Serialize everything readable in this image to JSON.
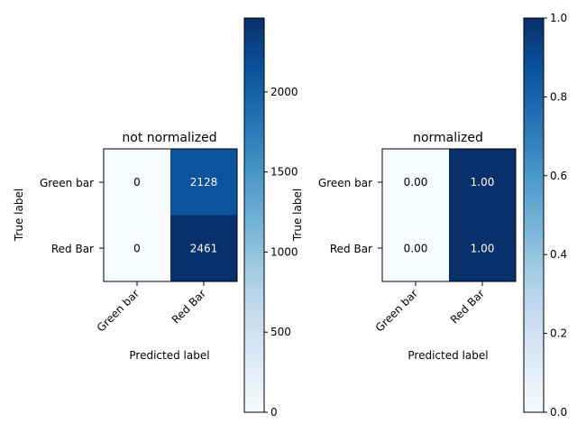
{
  "chart_data": [
    {
      "type": "heatmap",
      "title": "not normalized",
      "xlabel": "Predicted label",
      "ylabel": "True label",
      "x_categories": [
        "Green bar",
        "Red Bar"
      ],
      "y_categories": [
        "Green bar",
        "Red Bar"
      ],
      "matrix": [
        [
          0,
          2128
        ],
        [
          0,
          2461
        ]
      ],
      "cell_labels": [
        [
          "0",
          "2128"
        ],
        [
          "0",
          "2461"
        ]
      ],
      "colormap": "Blues",
      "vmin": 0,
      "vmax": 2461,
      "colorbar": {
        "ticks": [
          0,
          500,
          1000,
          1500,
          2000
        ],
        "tick_labels": [
          "0",
          "500",
          "1000",
          "1500",
          "2000"
        ]
      }
    },
    {
      "type": "heatmap",
      "title": "normalized",
      "xlabel": "Predicted label",
      "ylabel": "True label",
      "x_categories": [
        "Green bar",
        "Red Bar"
      ],
      "y_categories": [
        "Green bar",
        "Red Bar"
      ],
      "matrix": [
        [
          0.0,
          1.0
        ],
        [
          0.0,
          1.0
        ]
      ],
      "cell_labels": [
        [
          "0.00",
          "1.00"
        ],
        [
          "0.00",
          "1.00"
        ]
      ],
      "colormap": "Blues",
      "vmin": 0,
      "vmax": 1,
      "colorbar": {
        "ticks": [
          0.0,
          0.2,
          0.4,
          0.6,
          0.8,
          1.0
        ],
        "tick_labels": [
          "0.0",
          "0.2",
          "0.4",
          "0.6",
          "0.8",
          "1.0"
        ]
      }
    }
  ]
}
